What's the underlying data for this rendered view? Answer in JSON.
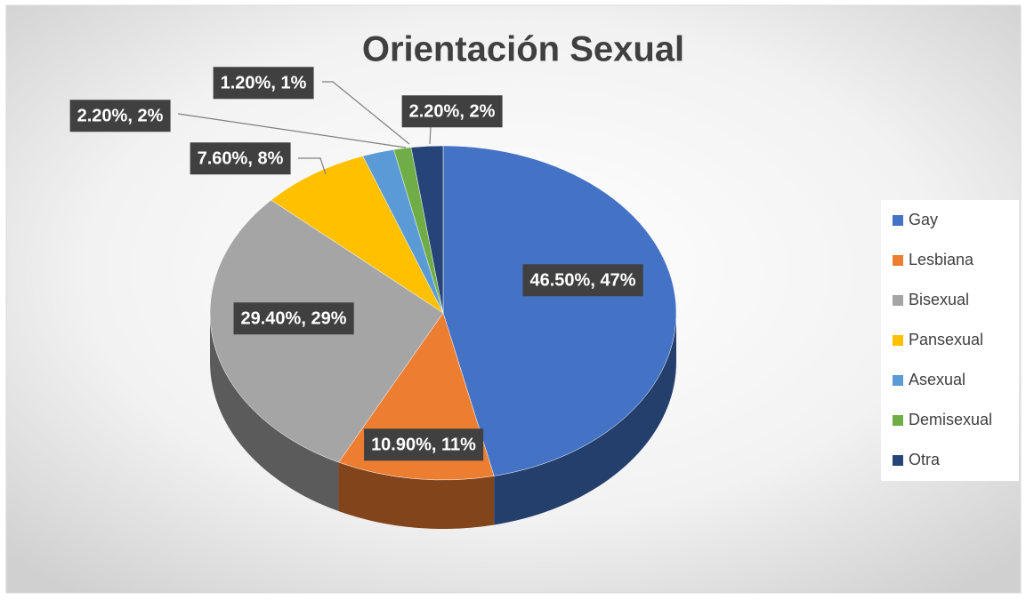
{
  "chart_data": {
    "type": "pie3d",
    "title": "Orientación Sexual",
    "categories": [
      "Gay",
      "Lesbiana",
      "Bisexual",
      "Pansexual",
      "Asexual",
      "Demisexual",
      "Otra"
    ],
    "values": [
      46.5,
      10.9,
      29.4,
      7.6,
      2.2,
      1.2,
      2.2
    ],
    "value_labels": [
      "46.50%, 47%",
      "10.90%, 11%",
      "29.40%, 29%",
      "7.60%, 8%",
      "2.20%, 2%",
      "1.20%, 1%",
      "2.20%, 2%"
    ],
    "colors": [
      "#4472c4",
      "#ed7d31",
      "#a5a5a5",
      "#ffc000",
      "#5b9bd5",
      "#70ad47",
      "#264478"
    ],
    "legend": "right"
  }
}
